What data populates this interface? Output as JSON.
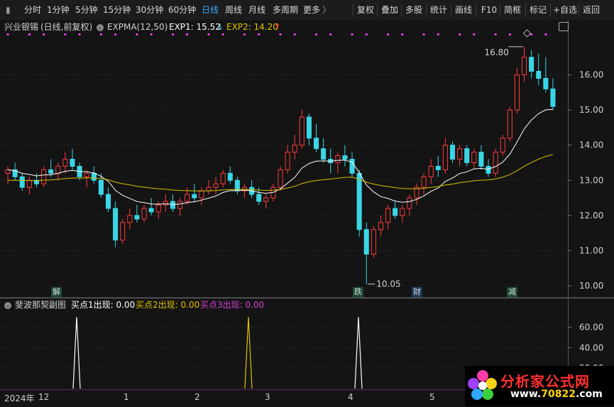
{
  "toolbar": {
    "tabs": [
      "分时",
      "1分钟",
      "5分钟",
      "15分钟",
      "30分钟",
      "60分钟",
      "日线",
      "周线",
      "月线",
      "多周期",
      "更多"
    ],
    "active_tab": "日线",
    "more_chevron": "〉",
    "right_buttons": [
      "复权",
      "叠加",
      "多股",
      "统计",
      "画线",
      "F10",
      "简框",
      "标记",
      "+自选",
      "返回"
    ]
  },
  "main_chart": {
    "stock_name": "兴业银锡",
    "period_label": "(日线,前复权)",
    "indicator_name": "EXPMA(12,50)",
    "exp1_label": "EXP1: 15.52",
    "exp1_arrow": "↓",
    "exp2_label": "EXP2: 14.20",
    "exp2_arrow": "↑",
    "high_marker": "16.80",
    "low_marker": "10.05",
    "event_tags": [
      "解",
      "跌",
      "财",
      "减"
    ],
    "colors": {
      "up": "#ff3b3b",
      "down": "#3ad6e6",
      "exp1": "#ffffff",
      "exp2": "#d8c000",
      "dots": "#e040e0"
    }
  },
  "sub_chart": {
    "title": "斐波那契副图",
    "buy1_label": "买点1出现: 0.00",
    "buy2_label": "买点2出现: 0.00",
    "buy3_label": "买点3出现: 0.00",
    "colors": {
      "buy1": "#ffffff",
      "buy2": "#e0c000",
      "buy3": "#d040d0"
    }
  },
  "date_axis": [
    "2024年",
    "12",
    "1",
    "2",
    "3",
    "4",
    "5"
  ],
  "logo": {
    "name": "分析家公式网",
    "url_prefix": "www.",
    "url_main": "70822",
    "url_suffix": ".com"
  },
  "chart_data": [
    {
      "type": "line",
      "title": "",
      "ylim": [
        9.8,
        17.2
      ],
      "yticks": [
        10.0,
        11.0,
        12.0,
        13.0,
        14.0,
        15.0,
        16.0
      ],
      "candles": [
        [
          13.2,
          13.4,
          12.9,
          13.3
        ],
        [
          13.3,
          13.5,
          13.0,
          13.1
        ],
        [
          13.1,
          13.2,
          12.7,
          12.8
        ],
        [
          12.8,
          13.1,
          12.6,
          13.0
        ],
        [
          13.0,
          13.2,
          12.8,
          12.9
        ],
        [
          12.9,
          13.4,
          12.8,
          13.3
        ],
        [
          13.3,
          13.6,
          13.1,
          13.2
        ],
        [
          13.2,
          13.5,
          13.0,
          13.4
        ],
        [
          13.4,
          13.8,
          13.2,
          13.6
        ],
        [
          13.6,
          13.9,
          13.3,
          13.4
        ],
        [
          13.4,
          13.5,
          13.0,
          13.1
        ],
        [
          13.1,
          13.3,
          12.8,
          13.2
        ],
        [
          13.2,
          13.4,
          12.9,
          13.0
        ],
        [
          13.0,
          13.2,
          12.5,
          12.6
        ],
        [
          12.6,
          12.8,
          12.1,
          12.2
        ],
        [
          12.2,
          12.4,
          11.1,
          11.3
        ],
        [
          11.3,
          11.9,
          11.2,
          11.8
        ],
        [
          11.8,
          12.2,
          11.6,
          12.0
        ],
        [
          12.0,
          12.3,
          11.8,
          11.9
        ],
        [
          11.9,
          12.3,
          11.8,
          12.2
        ],
        [
          12.2,
          12.5,
          12.0,
          12.1
        ],
        [
          12.1,
          12.4,
          11.9,
          12.3
        ],
        [
          12.3,
          12.6,
          12.1,
          12.4
        ],
        [
          12.4,
          12.6,
          12.1,
          12.2
        ],
        [
          12.2,
          12.5,
          12.0,
          12.4
        ],
        [
          12.4,
          12.8,
          12.3,
          12.6
        ],
        [
          12.6,
          12.9,
          12.4,
          12.5
        ],
        [
          12.5,
          12.8,
          12.3,
          12.7
        ],
        [
          12.7,
          13.0,
          12.6,
          12.8
        ],
        [
          12.8,
          13.1,
          12.6,
          12.9
        ],
        [
          12.9,
          13.3,
          12.8,
          13.2
        ],
        [
          13.2,
          13.4,
          12.9,
          13.0
        ],
        [
          13.0,
          13.1,
          12.6,
          12.7
        ],
        [
          12.7,
          12.9,
          12.5,
          12.8
        ],
        [
          12.8,
          13.0,
          12.5,
          12.6
        ],
        [
          12.6,
          12.8,
          12.3,
          12.4
        ],
        [
          12.4,
          12.6,
          12.2,
          12.5
        ],
        [
          12.5,
          12.9,
          12.4,
          12.8
        ],
        [
          12.8,
          13.4,
          12.7,
          13.3
        ],
        [
          13.3,
          14.0,
          13.2,
          13.8
        ],
        [
          13.8,
          14.3,
          13.6,
          14.0
        ],
        [
          14.0,
          15.0,
          13.9,
          14.8
        ],
        [
          14.8,
          14.9,
          14.0,
          14.2
        ],
        [
          14.2,
          14.6,
          13.8,
          13.9
        ],
        [
          13.9,
          14.2,
          13.5,
          13.6
        ],
        [
          13.6,
          13.9,
          13.2,
          13.5
        ],
        [
          13.5,
          13.8,
          13.2,
          13.7
        ],
        [
          13.7,
          14.0,
          13.4,
          13.6
        ],
        [
          13.6,
          13.8,
          13.1,
          13.2
        ],
        [
          13.2,
          13.3,
          11.4,
          11.6
        ],
        [
          11.6,
          11.8,
          10.05,
          10.9
        ],
        [
          10.9,
          11.7,
          10.8,
          11.6
        ],
        [
          11.6,
          12.0,
          11.4,
          11.8
        ],
        [
          11.8,
          12.3,
          11.6,
          12.2
        ],
        [
          12.2,
          12.4,
          11.9,
          12.0
        ],
        [
          12.0,
          12.3,
          11.8,
          12.2
        ],
        [
          12.2,
          12.6,
          12.0,
          12.5
        ],
        [
          12.5,
          12.9,
          12.3,
          12.8
        ],
        [
          12.8,
          13.2,
          12.6,
          13.1
        ],
        [
          13.1,
          13.6,
          12.9,
          13.4
        ],
        [
          13.4,
          13.7,
          13.1,
          13.3
        ],
        [
          13.3,
          14.2,
          13.2,
          14.0
        ],
        [
          14.0,
          14.1,
          13.5,
          13.6
        ],
        [
          13.6,
          14.0,
          13.4,
          13.9
        ],
        [
          13.9,
          14.0,
          13.4,
          13.5
        ],
        [
          13.5,
          13.9,
          13.3,
          13.8
        ],
        [
          13.8,
          14.0,
          13.3,
          13.4
        ],
        [
          13.4,
          13.6,
          13.1,
          13.2
        ],
        [
          13.2,
          13.9,
          13.1,
          13.8
        ],
        [
          13.8,
          14.3,
          13.7,
          14.2
        ],
        [
          14.2,
          15.1,
          14.1,
          15.0
        ],
        [
          15.0,
          16.2,
          14.9,
          16.0
        ],
        [
          16.0,
          16.8,
          15.8,
          16.5
        ],
        [
          16.5,
          16.7,
          15.9,
          16.1
        ],
        [
          16.1,
          16.6,
          15.7,
          15.9
        ],
        [
          15.9,
          16.5,
          15.5,
          15.6
        ],
        [
          15.6,
          15.9,
          15.0,
          15.1
        ]
      ],
      "series": [
        {
          "name": "EXP1"
        },
        {
          "name": "EXP2"
        }
      ],
      "high": 16.8,
      "low": 10.05
    },
    {
      "type": "line",
      "title": "斐波那契副图",
      "ylim": [
        0,
        75
      ],
      "yticks": [
        20.0,
        40.0,
        60.0
      ],
      "series": [
        {
          "name": "买点1出现",
          "spikes": [
            [
              108,
              70
            ],
            [
              505,
              70
            ]
          ]
        },
        {
          "name": "买点2出现",
          "spikes": [
            [
              350,
              70
            ]
          ]
        },
        {
          "name": "买点3出现",
          "spikes": []
        }
      ]
    }
  ]
}
